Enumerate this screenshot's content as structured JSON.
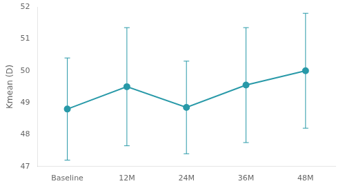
{
  "chart_data": {
    "type": "line",
    "ylabel": "Kmean (D)",
    "categories": [
      "Baseline",
      "12M",
      "24M",
      "36M",
      "48M"
    ],
    "values": [
      48.8,
      49.5,
      48.85,
      49.55,
      50.0
    ],
    "lower_errors": [
      1.6,
      1.85,
      1.45,
      1.8,
      1.8
    ],
    "upper_errors": [
      1.6,
      1.85,
      1.45,
      1.8,
      1.8
    ],
    "color": "#2899a8",
    "marker": "circle",
    "ylim": [
      47,
      52
    ],
    "yticks": [
      47,
      48,
      49,
      50,
      51,
      52
    ],
    "grid": false
  }
}
